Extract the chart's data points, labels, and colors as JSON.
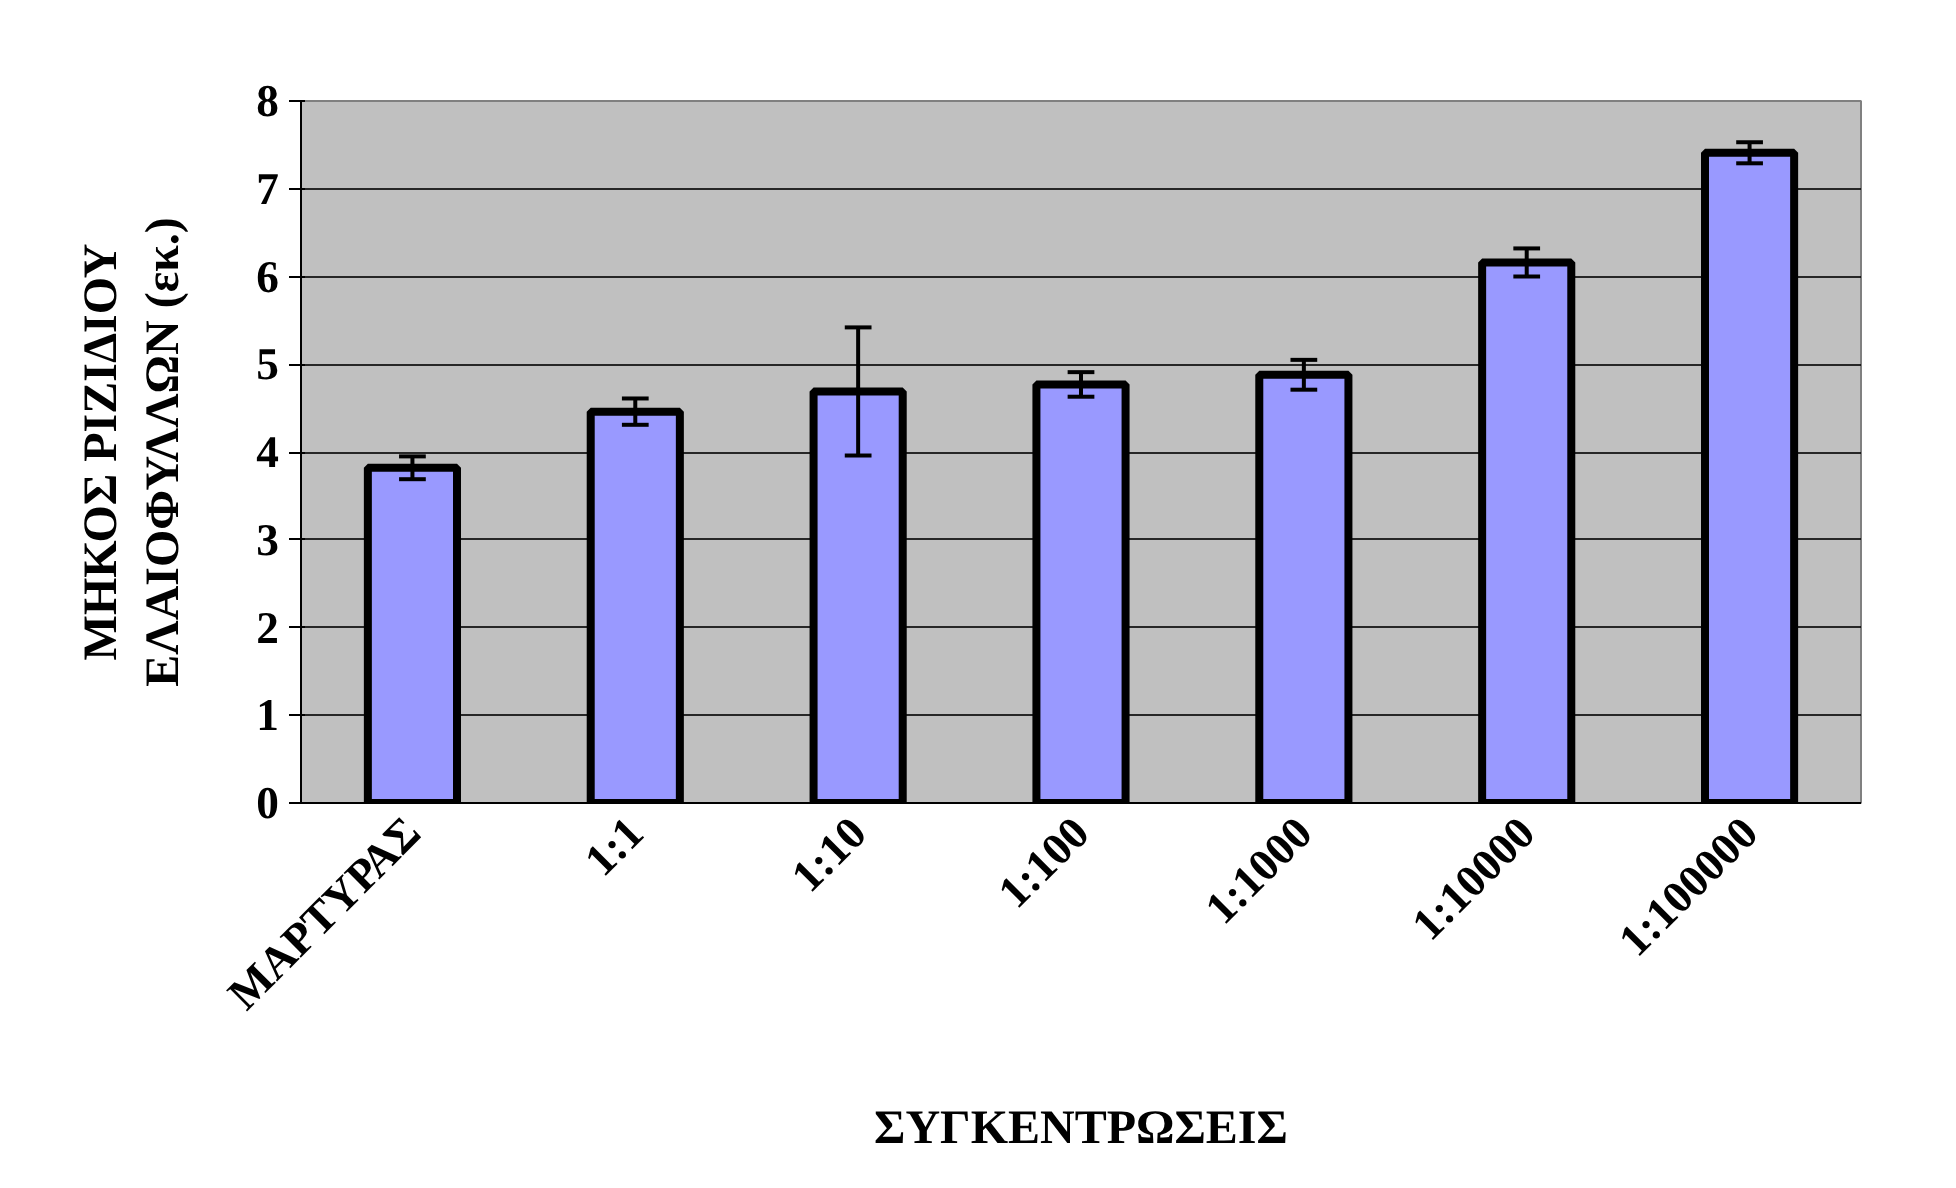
{
  "chart_data": {
    "type": "bar",
    "xlabel": "ΣΥΓΚΕΝΤΡΩΣΕΙΣ",
    "ylabel": "ΜΗΚΟΣ ΡΙΖΙΔΙΟΥ\nΕΛΑΙΟΦΥΛΛΩΝ (εκ.)",
    "categories": [
      "ΜΑΡΤΥΡΑΣ",
      "1:1",
      "1:10",
      "1:100",
      "1:1000",
      "1:10000",
      "1:100000"
    ],
    "values": [
      3.82,
      4.46,
      4.69,
      4.77,
      4.88,
      6.16,
      7.41
    ],
    "errors": [
      0.13,
      0.15,
      0.73,
      0.14,
      0.17,
      0.16,
      0.12
    ],
    "color": "#9999ff",
    "ylim": [
      0,
      8
    ],
    "yticks": [
      0,
      1,
      2,
      3,
      4,
      5,
      6,
      7,
      8
    ],
    "grid": "y"
  }
}
